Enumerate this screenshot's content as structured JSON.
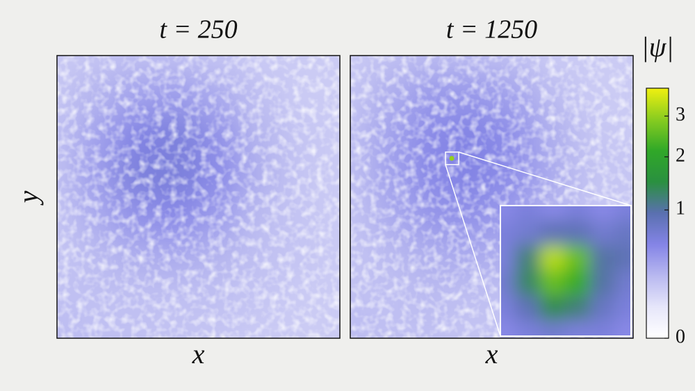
{
  "chart_data": [
    {
      "type": "heatmap",
      "title": "t = 250",
      "xlabel": "x",
      "ylabel": "y",
      "values": [
        [
          0.15,
          0.18,
          0.2,
          0.2,
          0.18,
          0.15,
          0.15,
          0.15
        ],
        [
          0.18,
          0.25,
          0.35,
          0.38,
          0.3,
          0.2,
          0.15,
          0.15
        ],
        [
          0.2,
          0.35,
          0.55,
          0.6,
          0.45,
          0.25,
          0.18,
          0.15
        ],
        [
          0.2,
          0.38,
          0.6,
          0.62,
          0.5,
          0.28,
          0.18,
          0.15
        ],
        [
          0.18,
          0.3,
          0.45,
          0.5,
          0.38,
          0.22,
          0.18,
          0.15
        ],
        [
          0.18,
          0.22,
          0.28,
          0.3,
          0.25,
          0.2,
          0.18,
          0.15
        ],
        [
          0.2,
          0.2,
          0.2,
          0.2,
          0.2,
          0.18,
          0.15,
          0.15
        ],
        [
          0.22,
          0.2,
          0.2,
          0.18,
          0.18,
          0.15,
          0.15,
          0.15
        ]
      ]
    },
    {
      "type": "heatmap",
      "title": "t = 1250",
      "xlabel": "x",
      "values": [
        [
          0.15,
          0.2,
          0.22,
          0.22,
          0.2,
          0.15,
          0.15,
          0.15
        ],
        [
          0.18,
          0.28,
          0.4,
          0.42,
          0.35,
          0.22,
          0.15,
          0.15
        ],
        [
          0.2,
          0.35,
          0.5,
          0.55,
          0.48,
          0.28,
          0.18,
          0.15
        ],
        [
          0.2,
          0.35,
          0.5,
          0.55,
          0.48,
          0.3,
          0.18,
          0.18
        ],
        [
          0.18,
          0.3,
          0.42,
          0.45,
          0.38,
          0.25,
          0.18,
          0.15
        ],
        [
          0.18,
          0.22,
          0.28,
          0.3,
          0.28,
          0.2,
          0.18,
          0.15
        ],
        [
          0.2,
          0.2,
          0.22,
          0.2,
          0.2,
          0.18,
          0.15,
          0.15
        ],
        [
          0.22,
          0.2,
          0.2,
          0.18,
          0.18,
          0.15,
          0.15,
          0.15
        ]
      ],
      "inset": {
        "values": [
          [
            0.5,
            0.6,
            0.5,
            0.6,
            0.5,
            0.6
          ],
          [
            0.6,
            0.7,
            0.9,
            0.9,
            0.7,
            0.8
          ],
          [
            0.6,
            1.2,
            3.3,
            2.6,
            1.0,
            0.9
          ],
          [
            0.7,
            1.3,
            2.6,
            2.2,
            1.0,
            0.7
          ],
          [
            0.6,
            0.9,
            1.4,
            1.2,
            0.8,
            0.6
          ],
          [
            0.5,
            0.6,
            0.7,
            0.6,
            0.6,
            0.5
          ]
        ]
      }
    }
  ],
  "colorbar": {
    "label": "|ψ|",
    "lim": [
      0,
      3.8
    ],
    "ticks": [
      0,
      1,
      2,
      3
    ],
    "scale": "sqrt",
    "colors": [
      "#ffffff",
      "#e6e6fa",
      "#b8b8f0",
      "#8484e6",
      "#5a70b0",
      "#2a9040",
      "#30a828",
      "#88cc20",
      "#f0f010"
    ]
  }
}
